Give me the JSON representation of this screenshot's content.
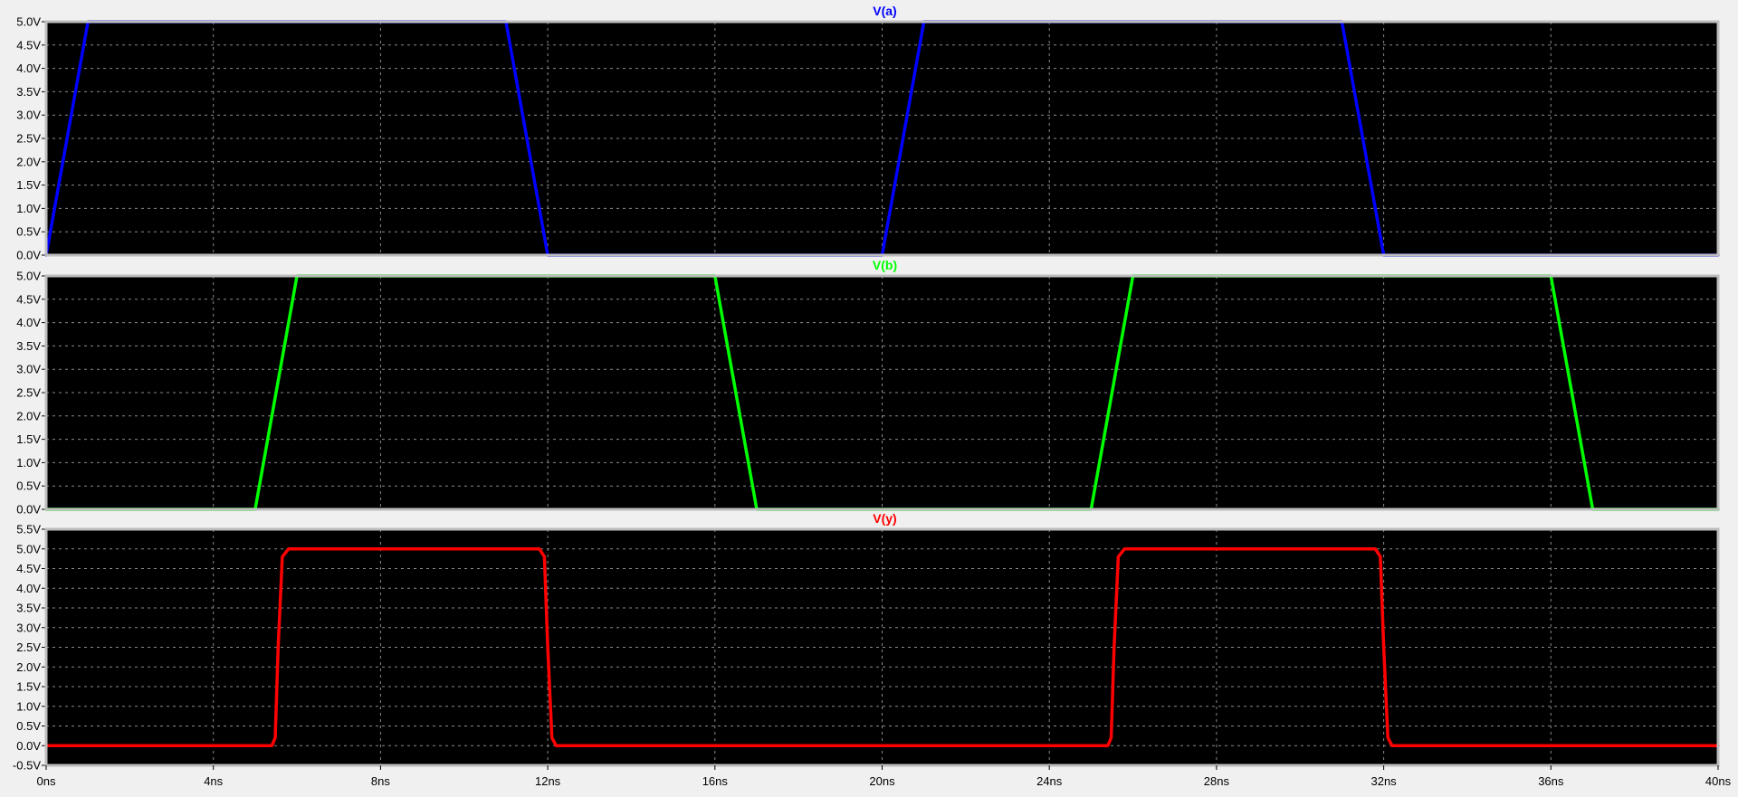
{
  "window": {
    "background": "#f0f0f0",
    "plot_background": "#000000",
    "grid_color": "#8a8a8a",
    "frame_color": "#bdbdbd"
  },
  "chart_data": [
    {
      "type": "line",
      "title": "V(a)",
      "color": "#0000ff",
      "xlim": [
        0,
        40
      ],
      "ylim": [
        0,
        5
      ],
      "grid": true,
      "y_ticks": [
        0,
        0.5,
        1,
        1.5,
        2,
        2.5,
        3,
        3.5,
        4,
        4.5,
        5
      ],
      "y_tick_labels": [
        "0.0V",
        "0.5V",
        "1.0V",
        "1.5V",
        "2.0V",
        "2.5V",
        "3.0V",
        "3.5V",
        "4.0V",
        "4.5V",
        "5.0V"
      ],
      "series": [
        {
          "x": [
            0,
            1,
            11,
            12,
            20,
            21,
            31,
            32,
            40
          ],
          "y": [
            0,
            5,
            5,
            0,
            0,
            5,
            5,
            0,
            0
          ]
        }
      ]
    },
    {
      "type": "line",
      "title": "V(b)",
      "color": "#00ff00",
      "xlim": [
        0,
        40
      ],
      "ylim": [
        0,
        5
      ],
      "grid": true,
      "y_ticks": [
        0,
        0.5,
        1,
        1.5,
        2,
        2.5,
        3,
        3.5,
        4,
        4.5,
        5
      ],
      "y_tick_labels": [
        "0.0V",
        "0.5V",
        "1.0V",
        "1.5V",
        "2.0V",
        "2.5V",
        "3.0V",
        "3.5V",
        "4.0V",
        "4.5V",
        "5.0V"
      ],
      "series": [
        {
          "x": [
            0,
            5,
            6,
            16,
            17,
            25,
            26,
            36,
            37,
            40
          ],
          "y": [
            0,
            0,
            5,
            5,
            0,
            0,
            5,
            5,
            0,
            0
          ]
        }
      ]
    },
    {
      "type": "line",
      "title": "V(y)",
      "color": "#ff0000",
      "xlim": [
        0,
        40
      ],
      "ylim": [
        -0.5,
        5.5
      ],
      "grid": true,
      "y_ticks": [
        -0.5,
        0,
        0.5,
        1,
        1.5,
        2,
        2.5,
        3,
        3.5,
        4,
        4.5,
        5,
        5.5
      ],
      "y_tick_labels": [
        "-0.5V",
        "0.0V",
        "0.5V",
        "1.0V",
        "1.5V",
        "2.0V",
        "2.5V",
        "3.0V",
        "3.5V",
        "4.0V",
        "4.5V",
        "5.0V",
        "5.5V"
      ],
      "x_ticks": [
        0,
        4,
        8,
        12,
        16,
        20,
        24,
        28,
        32,
        36,
        40
      ],
      "x_tick_labels": [
        "0ns",
        "4ns",
        "8ns",
        "12ns",
        "16ns",
        "20ns",
        "24ns",
        "28ns",
        "32ns",
        "36ns",
        "40ns"
      ],
      "series": [
        {
          "x": [
            0,
            5.4,
            5.48,
            5.55,
            5.65,
            5.8,
            11.8,
            11.92,
            12.0,
            12.1,
            12.2,
            25.4,
            25.48,
            25.55,
            25.65,
            25.8,
            31.8,
            31.92,
            32.0,
            32.1,
            32.2,
            40
          ],
          "y": [
            0,
            0,
            0.2,
            2.5,
            4.8,
            5,
            5,
            4.8,
            2.5,
            0.2,
            0,
            0,
            0.2,
            2.5,
            4.8,
            5,
            5,
            4.8,
            2.5,
            0.2,
            0,
            0
          ]
        }
      ]
    }
  ]
}
